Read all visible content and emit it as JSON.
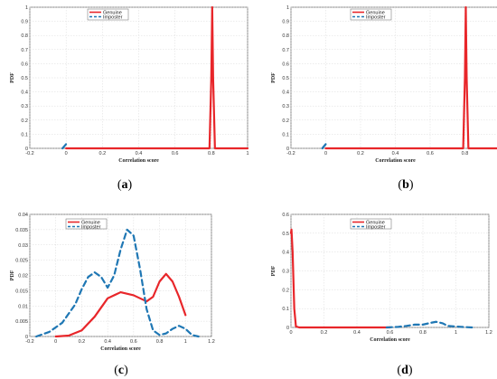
{
  "chart_data": [
    {
      "id": "a",
      "type": "line",
      "caption_letter": "a",
      "xlabel": "Correlation score",
      "ylabel": "PDF",
      "xlim": [
        -0.2,
        1
      ],
      "ylim": [
        0,
        1
      ],
      "xticks": [
        -0.2,
        0,
        0.2,
        0.4,
        0.6,
        0.8,
        1
      ],
      "xtick_labels": [
        "-0.2",
        "0",
        "0.2",
        "0.4",
        "0.6",
        "0.8",
        "1"
      ],
      "yticks": [
        0,
        0.1,
        0.2,
        0.3,
        0.4,
        0.5,
        0.6,
        0.7,
        0.8,
        0.9,
        1
      ],
      "ytick_labels": [
        "0",
        "0.1",
        "0.2",
        "0.3",
        "0.4",
        "0.5",
        "0.6",
        "0.7",
        "0.8",
        "0.9",
        "1"
      ],
      "grid": true,
      "legend_placement": "top-center",
      "series": [
        {
          "name": "Genuine",
          "color": "#e8262a",
          "dash": "solid",
          "x": [
            0,
            0.79,
            0.8,
            0.805,
            0.81,
            0.82,
            1
          ],
          "y": [
            0,
            0,
            0.5,
            1.0,
            0.5,
            0,
            0
          ]
        },
        {
          "name": "Imposter",
          "color": "#1f77b4",
          "dash": "dashed",
          "x": [
            -0.02,
            0,
            0.01
          ],
          "y": [
            0,
            0.03,
            0.04
          ]
        }
      ]
    },
    {
      "id": "b",
      "type": "line",
      "caption_letter": "b",
      "xlabel": "Correlation score",
      "ylabel": "PDF",
      "xlim": [
        -0.2,
        1
      ],
      "ylim": [
        0,
        1
      ],
      "xticks": [
        -0.2,
        0,
        0.2,
        0.4,
        0.6,
        0.8,
        1
      ],
      "xtick_labels": [
        "-0.2",
        "0",
        "0.2",
        "0.4",
        "0.6",
        "0.8",
        "1"
      ],
      "yticks": [
        0,
        0.1,
        0.2,
        0.3,
        0.4,
        0.5,
        0.6,
        0.7,
        0.8,
        0.9,
        1
      ],
      "ytick_labels": [
        "0",
        "0.1",
        "0.2",
        "0.3",
        "0.4",
        "0.5",
        "0.6",
        "0.7",
        "0.8",
        "0.9",
        "1"
      ],
      "grid": true,
      "legend_placement": "top-center",
      "series": [
        {
          "name": "Genuine",
          "color": "#e8262a",
          "dash": "solid",
          "x": [
            0,
            0.79,
            0.8,
            0.805,
            0.81,
            0.82,
            1
          ],
          "y": [
            0,
            0,
            0.5,
            1.0,
            0.5,
            0,
            0
          ]
        },
        {
          "name": "Imposter",
          "color": "#1f77b4",
          "dash": "dashed",
          "x": [
            -0.02,
            0,
            0.01
          ],
          "y": [
            0,
            0.03,
            0.04
          ]
        }
      ]
    },
    {
      "id": "c",
      "type": "line",
      "caption_letter": "c",
      "xlabel": "Correlation score",
      "ylabel": "PDF",
      "xlim": [
        -0.2,
        1.2
      ],
      "ylim": [
        0,
        0.04
      ],
      "xticks": [
        -0.2,
        0,
        0.2,
        0.4,
        0.6,
        0.8,
        1,
        1.2
      ],
      "xtick_labels": [
        "-0.2",
        "0",
        "0.2",
        "0.4",
        "0.6",
        "0.8",
        "1",
        "1.2"
      ],
      "yticks": [
        0,
        0.005,
        0.01,
        0.015,
        0.02,
        0.025,
        0.03,
        0.035,
        0.04
      ],
      "ytick_labels": [
        "0",
        "0.005",
        "0.01",
        "0.015",
        "0.02",
        "0.025",
        "0.03",
        "0.035",
        "0.04"
      ],
      "grid": true,
      "legend_placement": "top-left",
      "series": [
        {
          "name": "Genuine",
          "color": "#e8262a",
          "dash": "solid",
          "x": [
            0,
            0.1,
            0.2,
            0.3,
            0.4,
            0.5,
            0.6,
            0.7,
            0.75,
            0.8,
            0.85,
            0.9,
            0.95,
            1
          ],
          "y": [
            0,
            0.0003,
            0.002,
            0.0065,
            0.0125,
            0.0145,
            0.0135,
            0.0115,
            0.013,
            0.018,
            0.0205,
            0.018,
            0.013,
            0.007
          ]
        },
        {
          "name": "Imposter",
          "color": "#1f77b4",
          "dash": "dashed",
          "x": [
            -0.15,
            -0.05,
            0.05,
            0.15,
            0.2,
            0.25,
            0.3,
            0.35,
            0.4,
            0.45,
            0.5,
            0.55,
            0.6,
            0.65,
            0.7,
            0.75,
            0.8,
            0.85,
            0.9,
            0.95,
            1.0,
            1.05,
            1.1
          ],
          "y": [
            0,
            0.0015,
            0.0045,
            0.0105,
            0.0155,
            0.0195,
            0.021,
            0.0195,
            0.016,
            0.02,
            0.0285,
            0.035,
            0.033,
            0.022,
            0.009,
            0.002,
            0.0005,
            0.001,
            0.0025,
            0.0035,
            0.0025,
            0.0005,
            0
          ]
        }
      ]
    },
    {
      "id": "d",
      "type": "line",
      "caption_letter": "d",
      "xlabel": "Correlation score",
      "ylabel": "PDF",
      "xlim": [
        0,
        1.2
      ],
      "ylim": [
        0,
        0.6
      ],
      "xticks": [
        0,
        0.2,
        0.4,
        0.6,
        0.8,
        1,
        1.2
      ],
      "xtick_labels": [
        "0",
        "0.2",
        "0.4",
        "0.6",
        "0.8",
        "1",
        "1.2"
      ],
      "yticks": [
        0,
        0.1,
        0.2,
        0.3,
        0.4,
        0.5,
        0.6
      ],
      "ytick_labels": [
        "0",
        "0.1",
        "0.2",
        "0.3",
        "0.4",
        "0.5",
        "0.6"
      ],
      "grid": true,
      "legend_placement": "top-center",
      "series": [
        {
          "name": "Genuine",
          "color": "#e8262a",
          "dash": "solid",
          "x": [
            0,
            0.003,
            0.01,
            0.02,
            0.03,
            0.05,
            0.6
          ],
          "y": [
            0.5,
            0.52,
            0.4,
            0.1,
            0.005,
            0,
            0
          ]
        },
        {
          "name": "Imposter",
          "color": "#1f77b4",
          "dash": "dashed",
          "x": [
            0.58,
            0.65,
            0.7,
            0.75,
            0.8,
            0.85,
            0.88,
            0.92,
            0.95,
            1.0,
            1.05,
            1.1
          ],
          "y": [
            0,
            0.003,
            0.008,
            0.015,
            0.015,
            0.025,
            0.03,
            0.022,
            0.008,
            0.005,
            0.002,
            0
          ]
        }
      ]
    }
  ]
}
